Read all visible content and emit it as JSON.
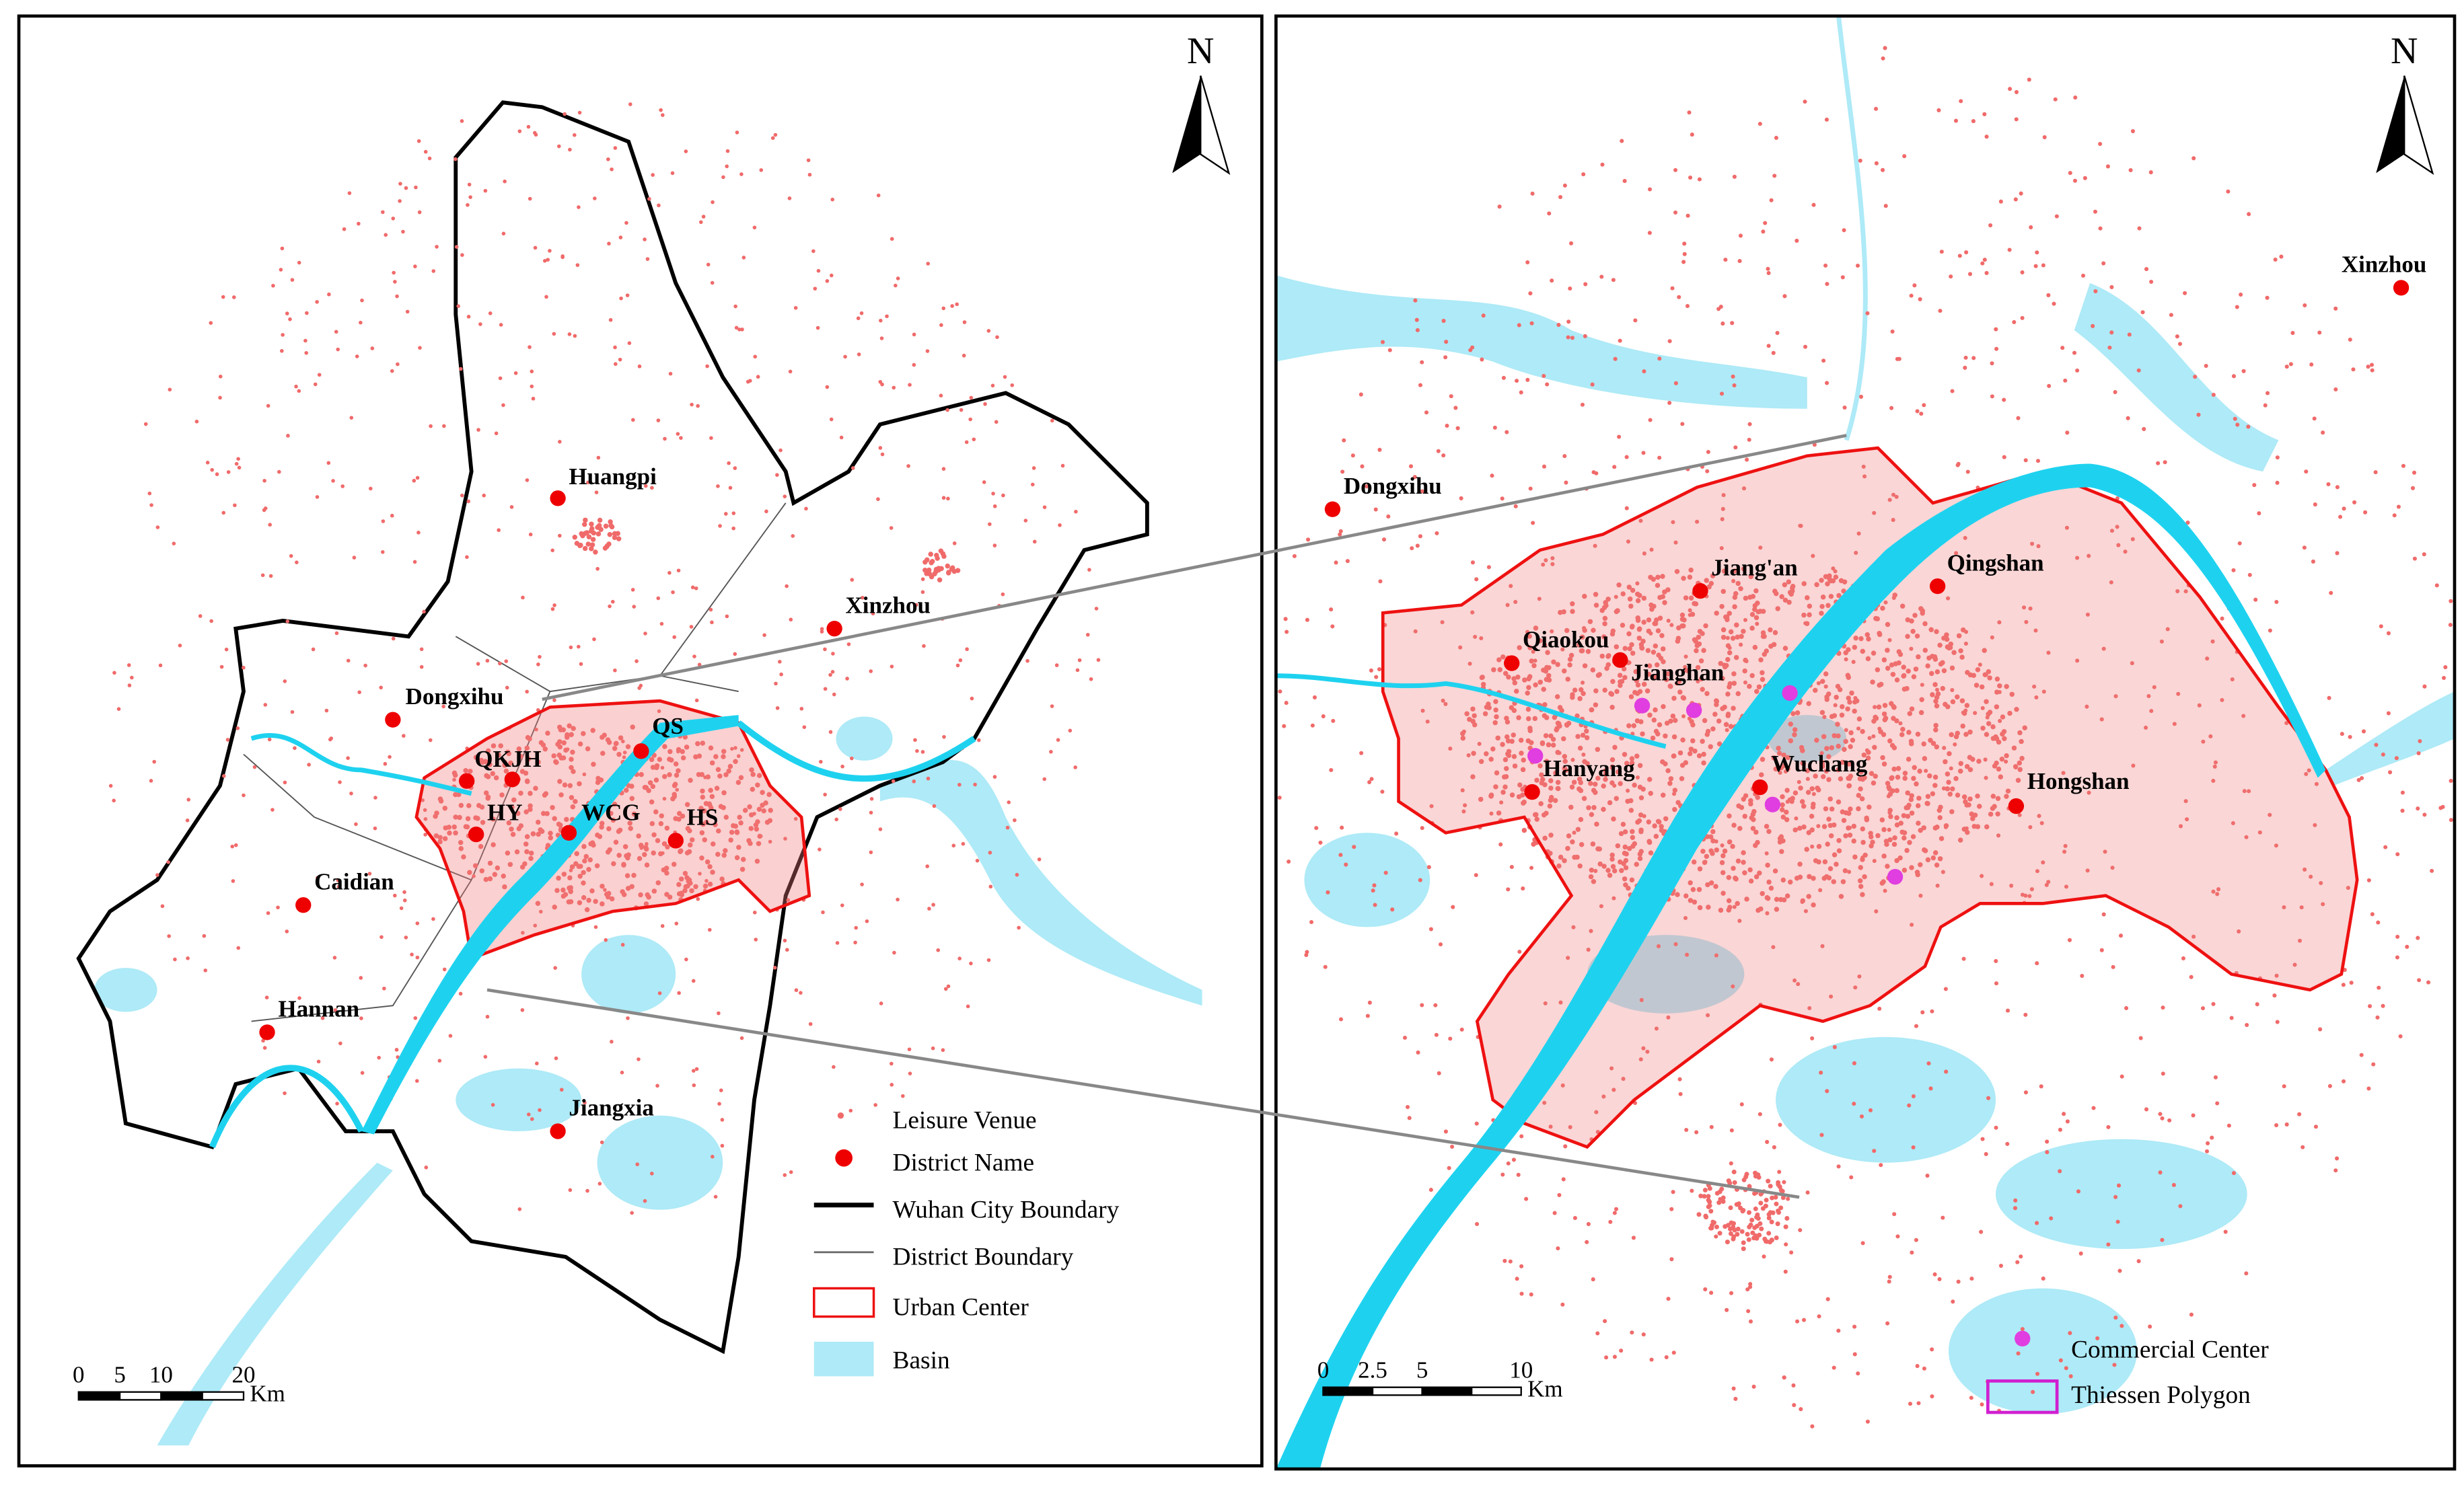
{
  "left_map": {
    "north": "N",
    "labels": [
      "Huangpi",
      "Xinzhou",
      "Dongxihu",
      "QKJH",
      "QS",
      "HY",
      "WCG",
      "HS",
      "Caidian",
      "Hannan",
      "Jiangxia"
    ],
    "legend": [
      "Leisure Venue",
      "District Name",
      "Wuhan City Boundary",
      "District Boundary",
      "Urban Center",
      "Basin"
    ],
    "scale_bar": {
      "ticks": [
        "0",
        "5",
        "10",
        "20"
      ],
      "unit": "Km"
    }
  },
  "right_map": {
    "north": "N",
    "labels": [
      "Xinzhou",
      "Dongxihu",
      "Jiang'an",
      "Qingshan",
      "Qiaokou",
      "Jianghan",
      "Hanyang",
      "Wuchang",
      "Hongshan"
    ],
    "legend": [
      "Commercial Center",
      "Thiessen Polygon"
    ],
    "scale_bar": {
      "ticks": [
        "0",
        "2.5",
        "5",
        "10"
      ],
      "unit": "Km"
    }
  }
}
